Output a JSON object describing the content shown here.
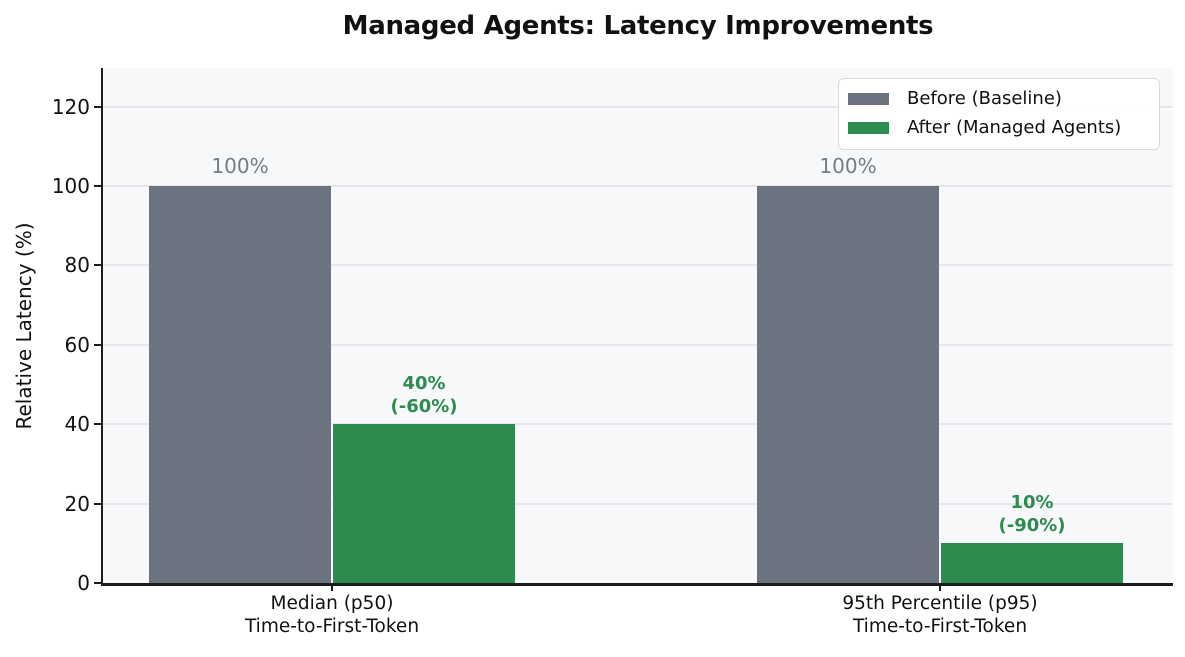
{
  "chart_data": {
    "type": "bar",
    "title": "Managed Agents: Latency Improvements",
    "ylabel": "Relative Latency (%)",
    "xlabel": "",
    "ylim": [
      0,
      130
    ],
    "yticks": [
      0,
      20,
      40,
      60,
      80,
      100,
      120
    ],
    "grid": true,
    "legend_position": "upper right",
    "plot_background": "#f7f8fa",
    "gridline_color": "#e5e7ea",
    "categories": [
      "Median (p50)\nTime-to-First-Token",
      "95th Percentile (p95)\nTime-to-First-Token"
    ],
    "series": [
      {
        "name": "Before (Baseline)",
        "color": "#6b7280",
        "values": [
          100,
          100
        ],
        "value_labels": [
          "100%",
          "100%"
        ],
        "label_color": "#757c87",
        "label_style": "before"
      },
      {
        "name": "After (Managed Agents)",
        "color": "#2e8b50",
        "values": [
          40,
          10
        ],
        "value_labels": [
          "40%\n(-60%)",
          "10%\n(-90%)"
        ],
        "label_color": "#2e8b50",
        "label_style": "after"
      }
    ]
  }
}
